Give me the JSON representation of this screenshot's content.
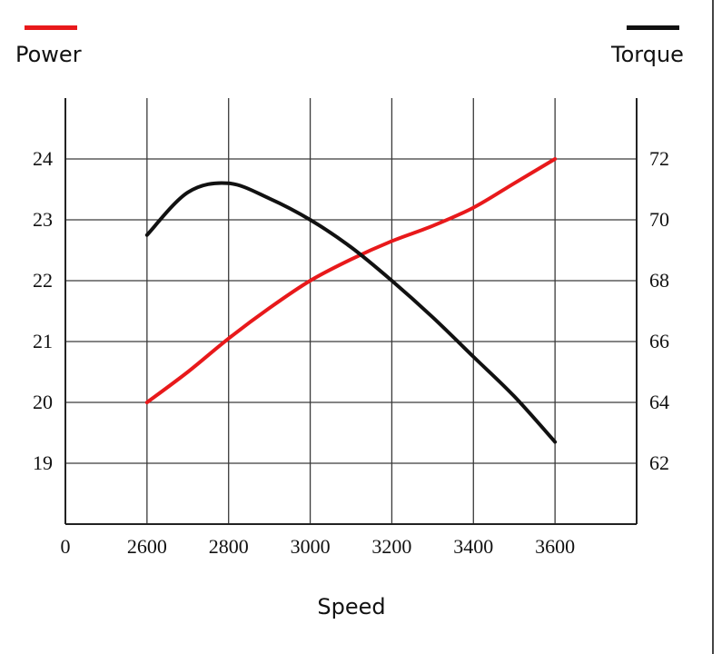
{
  "chart_data": {
    "type": "line",
    "xlabel": "Speed",
    "x": [
      2600,
      2700,
      2800,
      2900,
      3000,
      3100,
      3200,
      3300,
      3400,
      3500,
      3600
    ],
    "x_ticks": [
      "0",
      "2600",
      "2800",
      "3000",
      "3200",
      "3400",
      "3600"
    ],
    "x_tick_values": [
      2400,
      2600,
      2800,
      3000,
      3200,
      3400,
      3600
    ],
    "xlim": [
      2400,
      3800
    ],
    "y_left_ticks": [
      "19",
      "20",
      "21",
      "22",
      "23",
      "24"
    ],
    "y_left_tick_values": [
      19,
      20,
      21,
      22,
      23,
      24
    ],
    "y_left_lim": [
      18,
      25
    ],
    "y_right_ticks": [
      "62",
      "64",
      "66",
      "68",
      "70",
      "72"
    ],
    "y_right_tick_values": [
      62,
      64,
      66,
      68,
      70,
      72
    ],
    "y_right_lim": [
      60,
      74
    ],
    "grid": true,
    "series": [
      {
        "name": "Power",
        "axis": "left",
        "color": "#e8191b",
        "values": [
          20.0,
          20.5,
          21.05,
          21.55,
          22.0,
          22.35,
          22.65,
          22.9,
          23.2,
          23.6,
          24.0
        ]
      },
      {
        "name": "Torque",
        "axis": "right",
        "color": "#111111",
        "values": [
          69.5,
          70.9,
          71.2,
          70.7,
          70.0,
          69.1,
          68.0,
          66.8,
          65.5,
          64.2,
          62.7
        ]
      }
    ],
    "legend": [
      {
        "label": "Power",
        "color": "#e8191b",
        "position": "top-left"
      },
      {
        "label": "Torque",
        "color": "#111111",
        "position": "top-right"
      }
    ]
  }
}
